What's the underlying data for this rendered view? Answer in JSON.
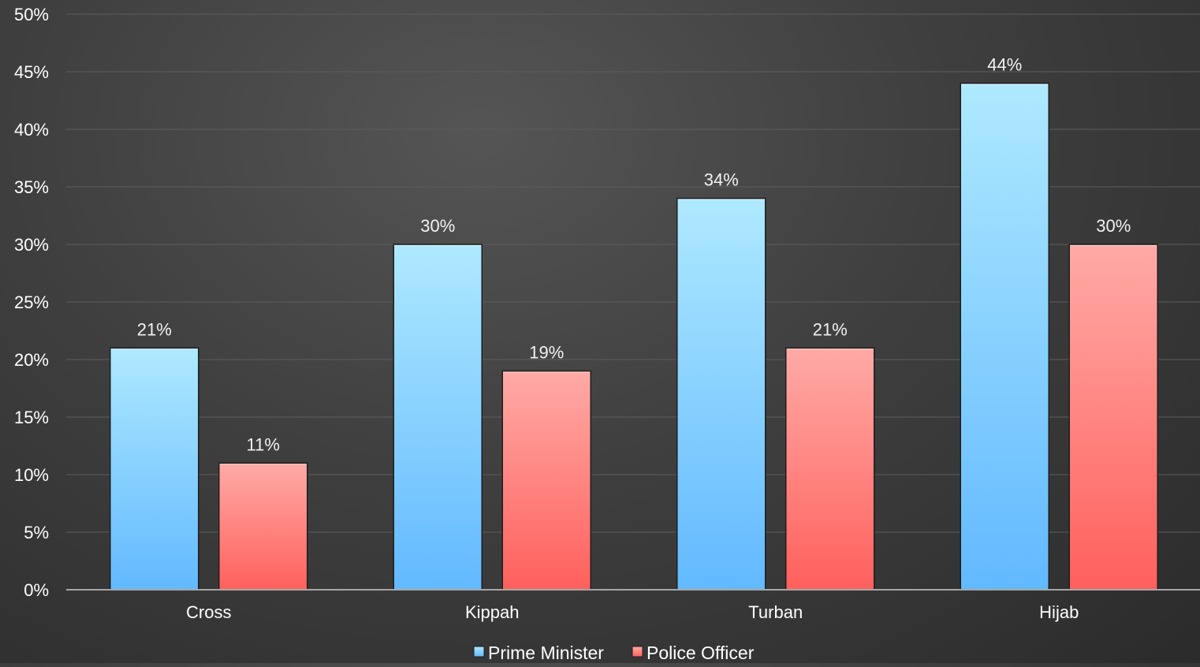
{
  "chart_data": {
    "type": "bar",
    "title": "",
    "xlabel": "",
    "ylabel": "",
    "categories": [
      "Cross",
      "Kippah",
      "Turban",
      "Hijab"
    ],
    "series": [
      {
        "name": "Prime Minister",
        "values": [
          21,
          30,
          34,
          44
        ],
        "labels": [
          "21%",
          "30%",
          "34%",
          "44%"
        ]
      },
      {
        "name": "Police Officer",
        "values": [
          11,
          19,
          21,
          30
        ],
        "labels": [
          "11%",
          "19%",
          "21%",
          "30%"
        ]
      }
    ],
    "ylim": [
      0,
      50
    ],
    "yticks": [
      0,
      5,
      10,
      15,
      20,
      25,
      30,
      35,
      40,
      45,
      50
    ],
    "ytick_labels": [
      "0%",
      "5%",
      "10%",
      "15%",
      "20%",
      "25%",
      "30%",
      "35%",
      "40%",
      "45%",
      "50%"
    ],
    "grid": true,
    "legend_position": "bottom-center",
    "colors": {
      "Prime Minister": {
        "top": "#aee9ff",
        "bottom": "#62b9ff"
      },
      "Police Officer": {
        "top": "#ffaaa6",
        "bottom": "#ff605c"
      }
    }
  }
}
